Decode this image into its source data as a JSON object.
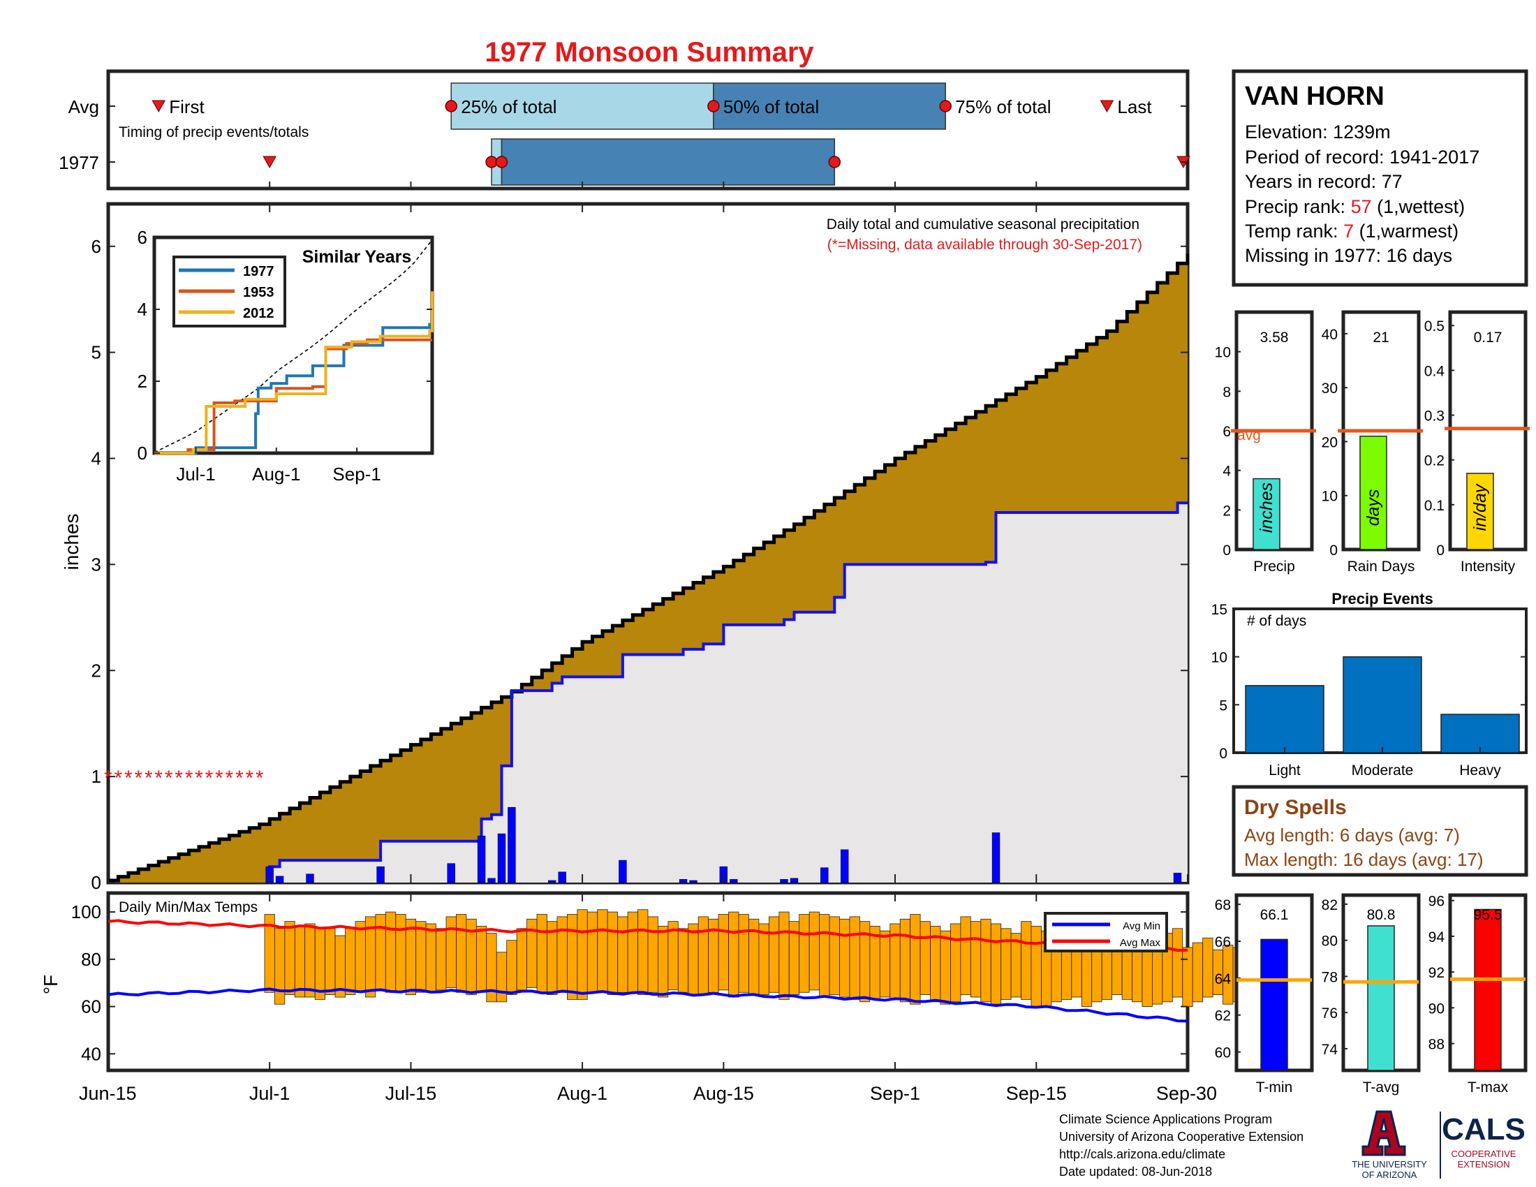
{
  "title": "1977 Monsoon Summary",
  "colors": {
    "title": "#e31a1c",
    "cumAvg": "#b8860b",
    "cumYear": "#1010ee",
    "fillYear": "#e8e6e6",
    "bar": "#0000ff",
    "avgLine": "#e3581f",
    "tempBar": "#ffa500",
    "avgMin": "#0000ff",
    "avgMax": "#ff0000",
    "missing": "#e31a1c",
    "events": "#0070c0",
    "precip": "#40e0d0",
    "raindays": "#7cfc00",
    "intensity": "#ffd700",
    "tmin": "#0000ff",
    "tavg": "#40e0d0",
    "tmax": "#ff0000",
    "tempAvgLine": "#ffa500",
    "drySpells": "#8b4513",
    "timingLight": "#a8d8e8",
    "timingDark": "#4682b4"
  },
  "timing": {
    "row_labels": [
      "Avg",
      "1977"
    ],
    "first_label": "First",
    "last_label": "Last",
    "subtitle": "Timing of precip events/totals",
    "pct_labels": [
      "25% of total",
      "50% of total",
      "75% of total"
    ],
    "avg": {
      "first": "Jun-20",
      "q25": "Jul-19",
      "q50": "Aug-14",
      "q75": "Sep-06",
      "last": "Sep-22"
    },
    "year": {
      "first": "Jul-1",
      "q25": "Jul-23",
      "q50": "Jul-24",
      "q75": "Aug-26",
      "last": "Sep-30"
    }
  },
  "main": {
    "header": "Daily total and cumulative seasonal precipitation",
    "note": "(*=Missing, data available through 30-Sep-2017)",
    "ylabel": "inches",
    "yticks": [
      "0",
      "1",
      "2",
      "3",
      "4",
      "5",
      "6"
    ],
    "xticks": [
      "Jun-15",
      "Jul-1",
      "Jul-15",
      "Aug-1",
      "Aug-15",
      "Sep-1",
      "Sep-15",
      "Sep-30"
    ]
  },
  "similar": {
    "title": "Similar Years",
    "legend": [
      "1977",
      "1953",
      "2012"
    ],
    "yticks": [
      "0",
      "2",
      "4",
      "6"
    ],
    "xticks": [
      "Jul-1",
      "Aug-1",
      "Sep-1"
    ]
  },
  "temps": {
    "label": "Daily Min/Max Temps",
    "ylabel": "°F",
    "yticks": [
      "40",
      "60",
      "80",
      "100"
    ],
    "legend": [
      "Avg Min",
      "Avg Max"
    ]
  },
  "station": {
    "name": "VAN HORN",
    "elevation": "Elevation: 1239m",
    "period": "Period of record: 1941-2017",
    "years": "Years in record: 77",
    "precip_rank_prefix": "Precip rank: ",
    "precip_rank": "57",
    "precip_rank_suffix": " (1,wettest)",
    "temp_rank_prefix": "Temp rank: ",
    "temp_rank": "7",
    "temp_rank_suffix": " (1,warmest)",
    "missing": "Missing in 1977: 16 days"
  },
  "summary": [
    {
      "label": "Precip",
      "value_text": "3.58",
      "unit": "inches",
      "value": 3.58,
      "avg": 6.0,
      "ymax": 12,
      "yticks": [
        "0",
        "2",
        "4",
        "6",
        "8",
        "10"
      ],
      "avg_text": "avg"
    },
    {
      "label": "Rain Days",
      "value_text": "21",
      "unit": "days",
      "value": 21,
      "avg": 22,
      "ymax": 44,
      "yticks": [
        "0",
        "10",
        "20",
        "30",
        "40"
      ]
    },
    {
      "label": "Intensity",
      "value_text": "0.17",
      "unit": "in/day",
      "value": 0.17,
      "avg": 0.27,
      "ymax": 0.53,
      "yticks": [
        "0",
        "0.1",
        "0.2",
        "0.3",
        "0.4",
        "0.5"
      ]
    }
  ],
  "events": {
    "title": "Precip Events",
    "ylabel": "# of days",
    "categories": [
      "Light",
      "Moderate",
      "Heavy"
    ],
    "values": [
      7,
      10,
      4
    ],
    "yticks": [
      "0",
      "5",
      "10",
      "15"
    ]
  },
  "dry_spells": {
    "title": "Dry Spells",
    "avg": "Avg length: 6 days (avg: 7)",
    "max": "Max length: 16 days (avg: 17)"
  },
  "temp_summary": [
    {
      "label": "T-min",
      "value_text": "66.1",
      "value": 66.1,
      "avg": 63.9,
      "ymin": 59,
      "ymax": 68.5,
      "yticks": [
        "60",
        "62",
        "64",
        "66",
        "68"
      ]
    },
    {
      "label": "T-avg",
      "value_text": "80.8",
      "value": 80.8,
      "avg": 77.7,
      "ymin": 72.8,
      "ymax": 82.5,
      "yticks": [
        "74",
        "76",
        "78",
        "80",
        "82"
      ]
    },
    {
      "label": "T-max",
      "value_text": "95.5",
      "value": 95.5,
      "avg": 91.6,
      "ymin": 86.5,
      "ymax": 96.3,
      "yticks": [
        "88",
        "90",
        "92",
        "94",
        "96"
      ]
    }
  ],
  "footer": {
    "lines": [
      "Climate Science Applications Program",
      "University of Arizona Cooperative Extension",
      "http://cals.arizona.edu/climate",
      " Date updated: 08-Jun-2018"
    ],
    "ua_line1": "THE UNIVERSITY",
    "ua_line2": "OF ARIZONA",
    "cals": "CALS",
    "cals_sub1": "COOPERATIVE",
    "cals_sub2": "EXTENSION"
  },
  "chart_data": [
    {
      "type": "area",
      "title": "Daily total and cumulative seasonal precipitation",
      "xlabel": "",
      "ylabel": "inches",
      "ylim": [
        0,
        6.4
      ],
      "xlim": [
        "Jun-15",
        "Sep-30"
      ],
      "series": [
        {
          "name": "",
          "kind": "average cumulative",
          "points": [
            [
              "Jun-15",
              0.02
            ],
            [
              "Jun-30",
              0.55
            ],
            [
              "Jul-15",
              1.3
            ],
            [
              "Jul-25",
              1.8
            ],
            [
              "Aug-1",
              2.27
            ],
            [
              "Aug-15",
              2.98
            ],
            [
              "Aug-22",
              3.38
            ],
            [
              "Sep-1",
              4.0
            ],
            [
              "Sep-15",
              4.77
            ],
            [
              "Sep-22",
              5.2
            ],
            [
              "Sep-30",
              5.93
            ]
          ]
        },
        {
          "name": "",
          "kind": "1977 cumulative",
          "points": [
            [
              "Jul-1",
              0.15
            ],
            [
              "Jul-2",
              0.21
            ],
            [
              "Jul-12",
              0.39
            ],
            [
              "Jul-22",
              0.6
            ],
            [
              "Jul-23",
              0.64
            ],
            [
              "Jul-24",
              1.1
            ],
            [
              "Jul-25",
              1.81
            ],
            [
              "Jul-29",
              1.88
            ],
            [
              "Jul-30",
              1.94
            ],
            [
              "Aug-5",
              2.15
            ],
            [
              "Aug-11",
              2.2
            ],
            [
              "Aug-13",
              2.25
            ],
            [
              "Aug-15",
              2.43
            ],
            [
              "Aug-21",
              2.48
            ],
            [
              "Aug-22",
              2.55
            ],
            [
              "Aug-26",
              2.69
            ],
            [
              "Aug-27",
              3.0
            ],
            [
              "Sep-10",
              3.02
            ],
            [
              "Sep-11",
              3.49
            ],
            [
              "Sep-29",
              3.58
            ]
          ]
        },
        {
          "name": "",
          "kind": "daily",
          "points": [
            [
              "Jul-1",
              0.15
            ],
            [
              "Jul-2",
              0.06
            ],
            [
              "Jul-5",
              0.08
            ],
            [
              "Jul-12",
              0.15
            ],
            [
              "Jul-19",
              0.18
            ],
            [
              "Jul-22",
              0.44
            ],
            [
              "Jul-23",
              0.04
            ],
            [
              "Jul-24",
              0.46
            ],
            [
              "Jul-25",
              0.71
            ],
            [
              "Jul-29",
              0.02
            ],
            [
              "Jul-30",
              0.1
            ],
            [
              "Aug-5",
              0.21
            ],
            [
              "Aug-11",
              0.03
            ],
            [
              "Aug-12",
              0.02
            ],
            [
              "Aug-15",
              0.15
            ],
            [
              "Aug-16",
              0.03
            ],
            [
              "Aug-21",
              0.03
            ],
            [
              "Aug-22",
              0.04
            ],
            [
              "Aug-25",
              0.14
            ],
            [
              "Aug-27",
              0.31
            ],
            [
              "Sep-11",
              0.47
            ],
            [
              "Sep-29",
              0.09
            ]
          ]
        }
      ],
      "missing": {
        "value": 1,
        "from": "Jun-15",
        "to": "Jun-30"
      }
    },
    {
      "type": "line",
      "title": "Similar Years",
      "ylim": [
        0,
        6
      ],
      "series": [
        {
          "name": "1977",
          "points": [
            [
              "Jul-1",
              0.15
            ],
            [
              "Jul-24",
              1.1
            ],
            [
              "Jul-25",
              1.81
            ],
            [
              "Jul-30",
              1.94
            ],
            [
              "Aug-5",
              2.15
            ],
            [
              "Aug-15",
              2.43
            ],
            [
              "Aug-27",
              3.0
            ],
            [
              "Sep-11",
              3.49
            ],
            [
              "Sep-29",
              3.58
            ]
          ]
        },
        {
          "name": "1953",
          "points": [
            [
              "Jun-15",
              0
            ],
            [
              "Jun-28",
              0.1
            ],
            [
              "Jul-8",
              1.4
            ],
            [
              "Jul-16",
              1.45
            ],
            [
              "Aug-1",
              1.8
            ],
            [
              "Aug-15",
              1.85
            ],
            [
              "Aug-20",
              2.9
            ],
            [
              "Aug-28",
              3.05
            ],
            [
              "Sep-5",
              3.15
            ],
            [
              "Sep-30",
              3.15
            ]
          ]
        },
        {
          "name": "2012",
          "points": [
            [
              "Jun-15",
              0
            ],
            [
              "Jun-30",
              0.1
            ],
            [
              "Jul-5",
              1.3
            ],
            [
              "Jul-20",
              1.5
            ],
            [
              "Aug-1",
              1.65
            ],
            [
              "Aug-15",
              1.65
            ],
            [
              "Aug-20",
              2.95
            ],
            [
              "Aug-30",
              3.1
            ],
            [
              "Sep-10",
              3.25
            ],
            [
              "Sep-29",
              3.4
            ],
            [
              "Sep-30",
              4.5
            ]
          ]
        }
      ]
    },
    {
      "type": "bar",
      "title": "Daily Min/Max Temps",
      "ylabel": "°F",
      "ylim": [
        33,
        108
      ],
      "avg_max": [
        [
          "Jun-15",
          96
        ],
        [
          "Jul-1",
          94
        ],
        [
          "Jul-25",
          92
        ],
        [
          "Aug-15",
          92
        ],
        [
          "Sep-1",
          90
        ],
        [
          "Sep-15",
          87
        ],
        [
          "Sep-30",
          84
        ]
      ],
      "avg_min": [
        [
          "Jun-15",
          65
        ],
        [
          "Jul-1",
          67
        ],
        [
          "Aug-1",
          66
        ],
        [
          "Aug-15",
          65
        ],
        [
          "Sep-1",
          63
        ],
        [
          "Sep-15",
          60
        ],
        [
          "Sep-30",
          54
        ]
      ],
      "daily_range_first": "Jul-1",
      "daily_max": [
        99,
        93,
        96,
        94,
        95,
        93,
        93,
        90,
        93,
        96,
        98,
        99,
        100,
        99,
        97,
        96,
        95,
        93,
        98,
        99,
        97,
        94,
        91,
        83,
        88,
        93,
        97,
        99,
        96,
        98,
        99,
        101,
        100,
        101,
        100,
        98,
        100,
        101,
        98,
        94,
        96,
        93,
        95,
        98,
        97,
        99,
        100,
        99,
        97,
        95,
        98,
        100,
        96,
        99,
        100,
        99,
        98,
        97,
        98,
        96,
        94,
        92,
        95,
        97,
        99,
        96,
        94,
        92,
        95,
        98,
        96,
        97,
        95,
        93,
        91,
        96,
        94,
        92,
        93,
        95,
        93,
        95,
        92,
        90,
        89,
        91,
        93,
        90,
        88,
        91,
        93,
        85,
        87,
        89,
        84,
        86,
        85,
        87
      ],
      "daily_min": [
        66,
        61,
        65,
        64,
        64,
        63,
        65,
        64,
        65,
        66,
        64,
        67,
        66,
        66,
        65,
        66,
        66,
        67,
        68,
        66,
        65,
        66,
        62,
        62,
        65,
        67,
        68,
        66,
        65,
        66,
        63,
        63,
        66,
        66,
        65,
        66,
        66,
        65,
        66,
        64,
        67,
        66,
        65,
        65,
        66,
        67,
        64,
        66,
        65,
        65,
        66,
        63,
        65,
        66,
        67,
        64,
        65,
        64,
        63,
        62,
        63,
        64,
        63,
        62,
        61,
        65,
        62,
        61,
        62,
        65,
        64,
        62,
        61,
        63,
        64,
        63,
        60,
        60,
        62,
        63,
        64,
        60,
        62,
        63,
        65,
        63,
        62,
        60,
        61,
        62,
        64,
        60,
        62,
        64,
        65,
        61,
        62,
        63
      ]
    },
    {
      "type": "bar",
      "title": "Precip Events",
      "categories": [
        "Light",
        "Moderate",
        "Heavy"
      ],
      "values": [
        7,
        10,
        4
      ],
      "ylim": [
        0,
        15
      ]
    }
  ]
}
